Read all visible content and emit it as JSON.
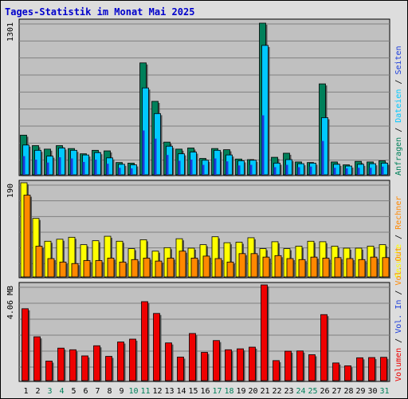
{
  "title": "Tages-Statistik im Monat Mai 2025",
  "colors": {
    "anfragen": "#00805a",
    "dateien": "#00c8ff",
    "seiten": "#1a3cdc",
    "besuche": "#ffff00",
    "rechner": "#ff8800",
    "volumen": "#ee0000",
    "panel_bg": "#c0c0c0",
    "page_bg": "#dddddd",
    "gridline": "#808080",
    "weekend_label": "#00805a",
    "title": "#0000cc"
  },
  "chart_data": [
    {
      "type": "bar",
      "panel": "top",
      "ymax_label": "1301",
      "ylim": [
        0,
        1301
      ],
      "categories": [
        "1",
        "2",
        "3",
        "4",
        "5",
        "6",
        "7",
        "8",
        "9",
        "10",
        "11",
        "12",
        "13",
        "14",
        "15",
        "16",
        "17",
        "18",
        "19",
        "20",
        "21",
        "22",
        "23",
        "24",
        "25",
        "26",
        "27",
        "28",
        "29",
        "30",
        "31"
      ],
      "weekend_days": [
        "3",
        "4",
        "10",
        "11",
        "17",
        "18",
        "24",
        "25",
        "31"
      ],
      "legend": [
        {
          "label": "Anfragen",
          "key": "anfragen"
        },
        {
          "label": "Dateien",
          "key": "dateien"
        },
        {
          "label": "Seiten",
          "key": "seiten"
        }
      ],
      "series": [
        {
          "name": "Anfragen",
          "values": [
            340,
            250,
            220,
            250,
            225,
            180,
            210,
            205,
            105,
            100,
            960,
            630,
            280,
            220,
            230,
            140,
            225,
            215,
            135,
            130,
            1301,
            150,
            185,
            110,
            105,
            780,
            110,
            85,
            115,
            110,
            120
          ]
        },
        {
          "name": "Dateien",
          "values": [
            255,
            210,
            160,
            230,
            210,
            170,
            190,
            145,
            90,
            85,
            745,
            525,
            245,
            180,
            195,
            125,
            210,
            170,
            120,
            125,
            1110,
            100,
            130,
            95,
            100,
            490,
            90,
            75,
            90,
            95,
            100
          ]
        },
        {
          "name": "Seiten",
          "values": [
            160,
            130,
            105,
            150,
            140,
            110,
            130,
            95,
            60,
            55,
            380,
            310,
            170,
            120,
            130,
            85,
            140,
            115,
            80,
            85,
            510,
            65,
            85,
            65,
            70,
            290,
            60,
            55,
            60,
            60,
            70
          ]
        }
      ]
    },
    {
      "type": "bar",
      "panel": "middle",
      "ymax_label": "190",
      "ylim": [
        0,
        190
      ],
      "legend": [
        {
          "label": "Besuche",
          "key": "besuche"
        },
        {
          "label": "Rechner",
          "key": "rechner"
        }
      ],
      "series": [
        {
          "name": "Besuche",
          "values": [
            190,
            118,
            72,
            76,
            80,
            65,
            73,
            82,
            72,
            57,
            75,
            52,
            59,
            77,
            58,
            65,
            81,
            69,
            70,
            79,
            57,
            71,
            57,
            62,
            72,
            71,
            62,
            58,
            58,
            62,
            65
          ]
        },
        {
          "name": "Rechner",
          "values": [
            165,
            62,
            37,
            30,
            27,
            33,
            33,
            38,
            30,
            35,
            38,
            32,
            38,
            52,
            38,
            42,
            37,
            30,
            47,
            47,
            40,
            43,
            37,
            35,
            40,
            38,
            39,
            37,
            35,
            40,
            39
          ]
        }
      ]
    },
    {
      "type": "bar",
      "panel": "bottom",
      "ymax_label": "4.06 MB",
      "ylim": [
        0,
        4.06
      ],
      "legend": [
        {
          "label": "Volumen",
          "key": "volumen"
        },
        {
          "label": "Vol. In",
          "key": "seiten"
        },
        {
          "label": "Vol. Out",
          "key": "rechner"
        }
      ],
      "series": [
        {
          "name": "Volumen",
          "values": [
            3.05,
            1.86,
            0.83,
            1.38,
            1.31,
            1.05,
            1.48,
            1.03,
            1.64,
            1.76,
            3.35,
            2.85,
            1.6,
            1.0,
            2.0,
            1.2,
            1.7,
            1.31,
            1.35,
            1.42,
            4.06,
            0.85,
            1.25,
            1.26,
            1.1,
            2.8,
            0.75,
            0.63,
            0.97,
            0.98,
            0.99
          ]
        }
      ]
    }
  ]
}
